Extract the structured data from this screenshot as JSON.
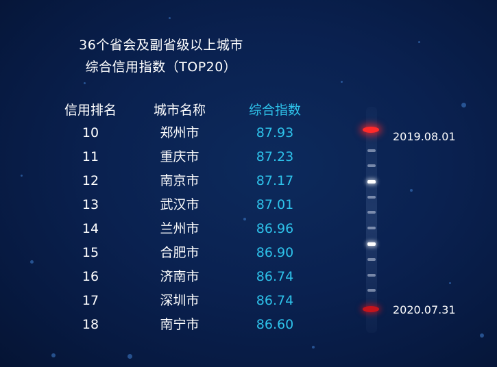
{
  "title": {
    "line1": "36个省会及副省级以上城市",
    "line2": "综合信用指数（TOP20）"
  },
  "table": {
    "headers": {
      "rank": "信用排名",
      "city": "城市名称",
      "index": "综合指数"
    },
    "rows": [
      {
        "rank": "10",
        "city": "郑州市",
        "index": "87.93"
      },
      {
        "rank": "11",
        "city": "重庆市",
        "index": "87.23"
      },
      {
        "rank": "12",
        "city": "南京市",
        "index": "87.17"
      },
      {
        "rank": "13",
        "city": "武汉市",
        "index": "87.01"
      },
      {
        "rank": "14",
        "city": "兰州市",
        "index": "86.96"
      },
      {
        "rank": "15",
        "city": "合肥市",
        "index": "86.90"
      },
      {
        "rank": "16",
        "city": "济南市",
        "index": "86.74"
      },
      {
        "rank": "17",
        "city": "深圳市",
        "index": "86.74"
      },
      {
        "rank": "18",
        "city": "南宁市",
        "index": "86.60"
      }
    ]
  },
  "timeline": {
    "start_date": "2019.08.01",
    "end_date": "2020.07.31"
  },
  "colors": {
    "background": "#0a2150",
    "accent_cyan": "#2ec2ea",
    "marker_red": "#ff2a2a",
    "text": "#ffffff"
  }
}
